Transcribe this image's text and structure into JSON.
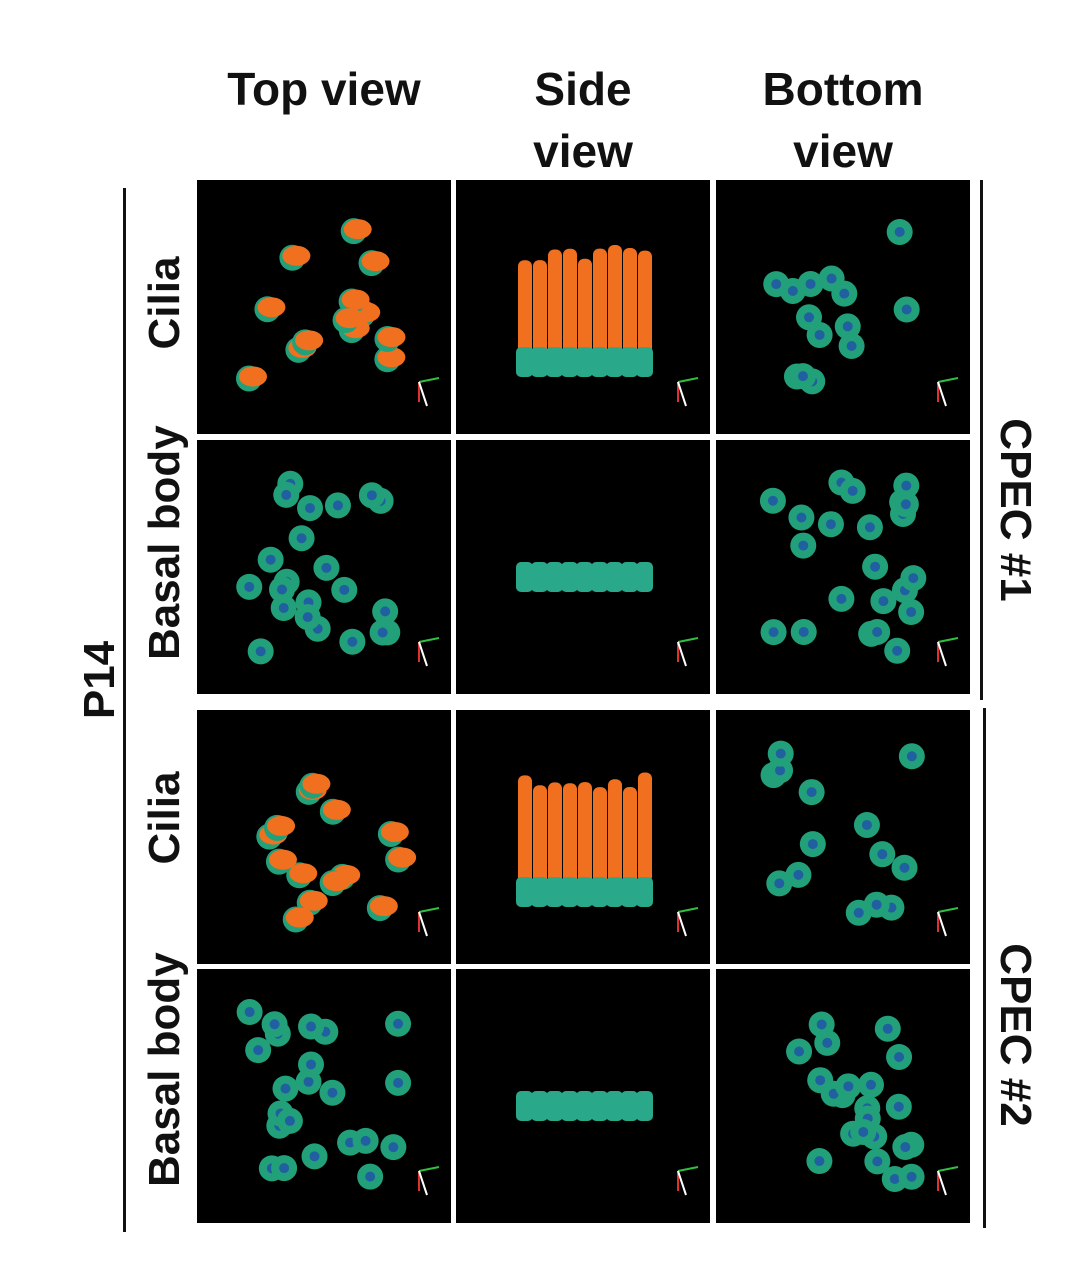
{
  "columns": [
    "Top view",
    "Side view",
    "Bottom view"
  ],
  "age": "P14",
  "groups": [
    {
      "label": "CPEC #1",
      "rows": [
        "Cilia",
        "Basal body"
      ]
    },
    {
      "label": "CPEC #2",
      "rows": [
        "Cilia",
        "Basal body"
      ]
    }
  ]
}
